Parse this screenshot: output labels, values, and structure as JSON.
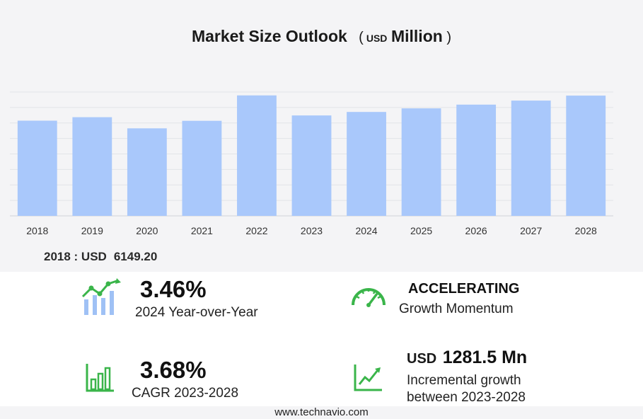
{
  "header": {
    "title": "Market Size Outlook",
    "unit_open": "(",
    "unit_code": "USD",
    "unit_word": "Million",
    "unit_close": ")"
  },
  "chart_data": {
    "type": "bar",
    "categories": [
      "2018",
      "2019",
      "2020",
      "2021",
      "2022",
      "2023",
      "2024",
      "2025",
      "2026",
      "2027",
      "2028"
    ],
    "values": [
      6149.2,
      6373.1,
      5654.3,
      6139.7,
      7780.5,
      6487.0,
      6711.5,
      6944.2,
      7185.8,
      7446.2,
      7768.5
    ],
    "ylim": [
      0,
      8000
    ],
    "grid": true,
    "bar_color": "#a9c8fb"
  },
  "base_value": {
    "label": "2018 : USD",
    "value": "6149.20"
  },
  "kpis": {
    "yoy": {
      "value": "3.46%",
      "label": "2024 Year-over-Year"
    },
    "momentum": {
      "title": "ACCELERATING",
      "label": "Growth Momentum"
    },
    "cagr": {
      "value": "3.68%",
      "label": "CAGR 2023-2028"
    },
    "incremental": {
      "currency": "USD",
      "value": "1281.5 Mn",
      "label_line1": "Incremental growth",
      "label_line2": "between 2023-2028"
    }
  },
  "footer": {
    "url": "www.technavio.com"
  },
  "colors": {
    "accent_green": "#3ab54a",
    "bar": "#a9c8fb",
    "icon_blue": "#9fc1f5"
  }
}
